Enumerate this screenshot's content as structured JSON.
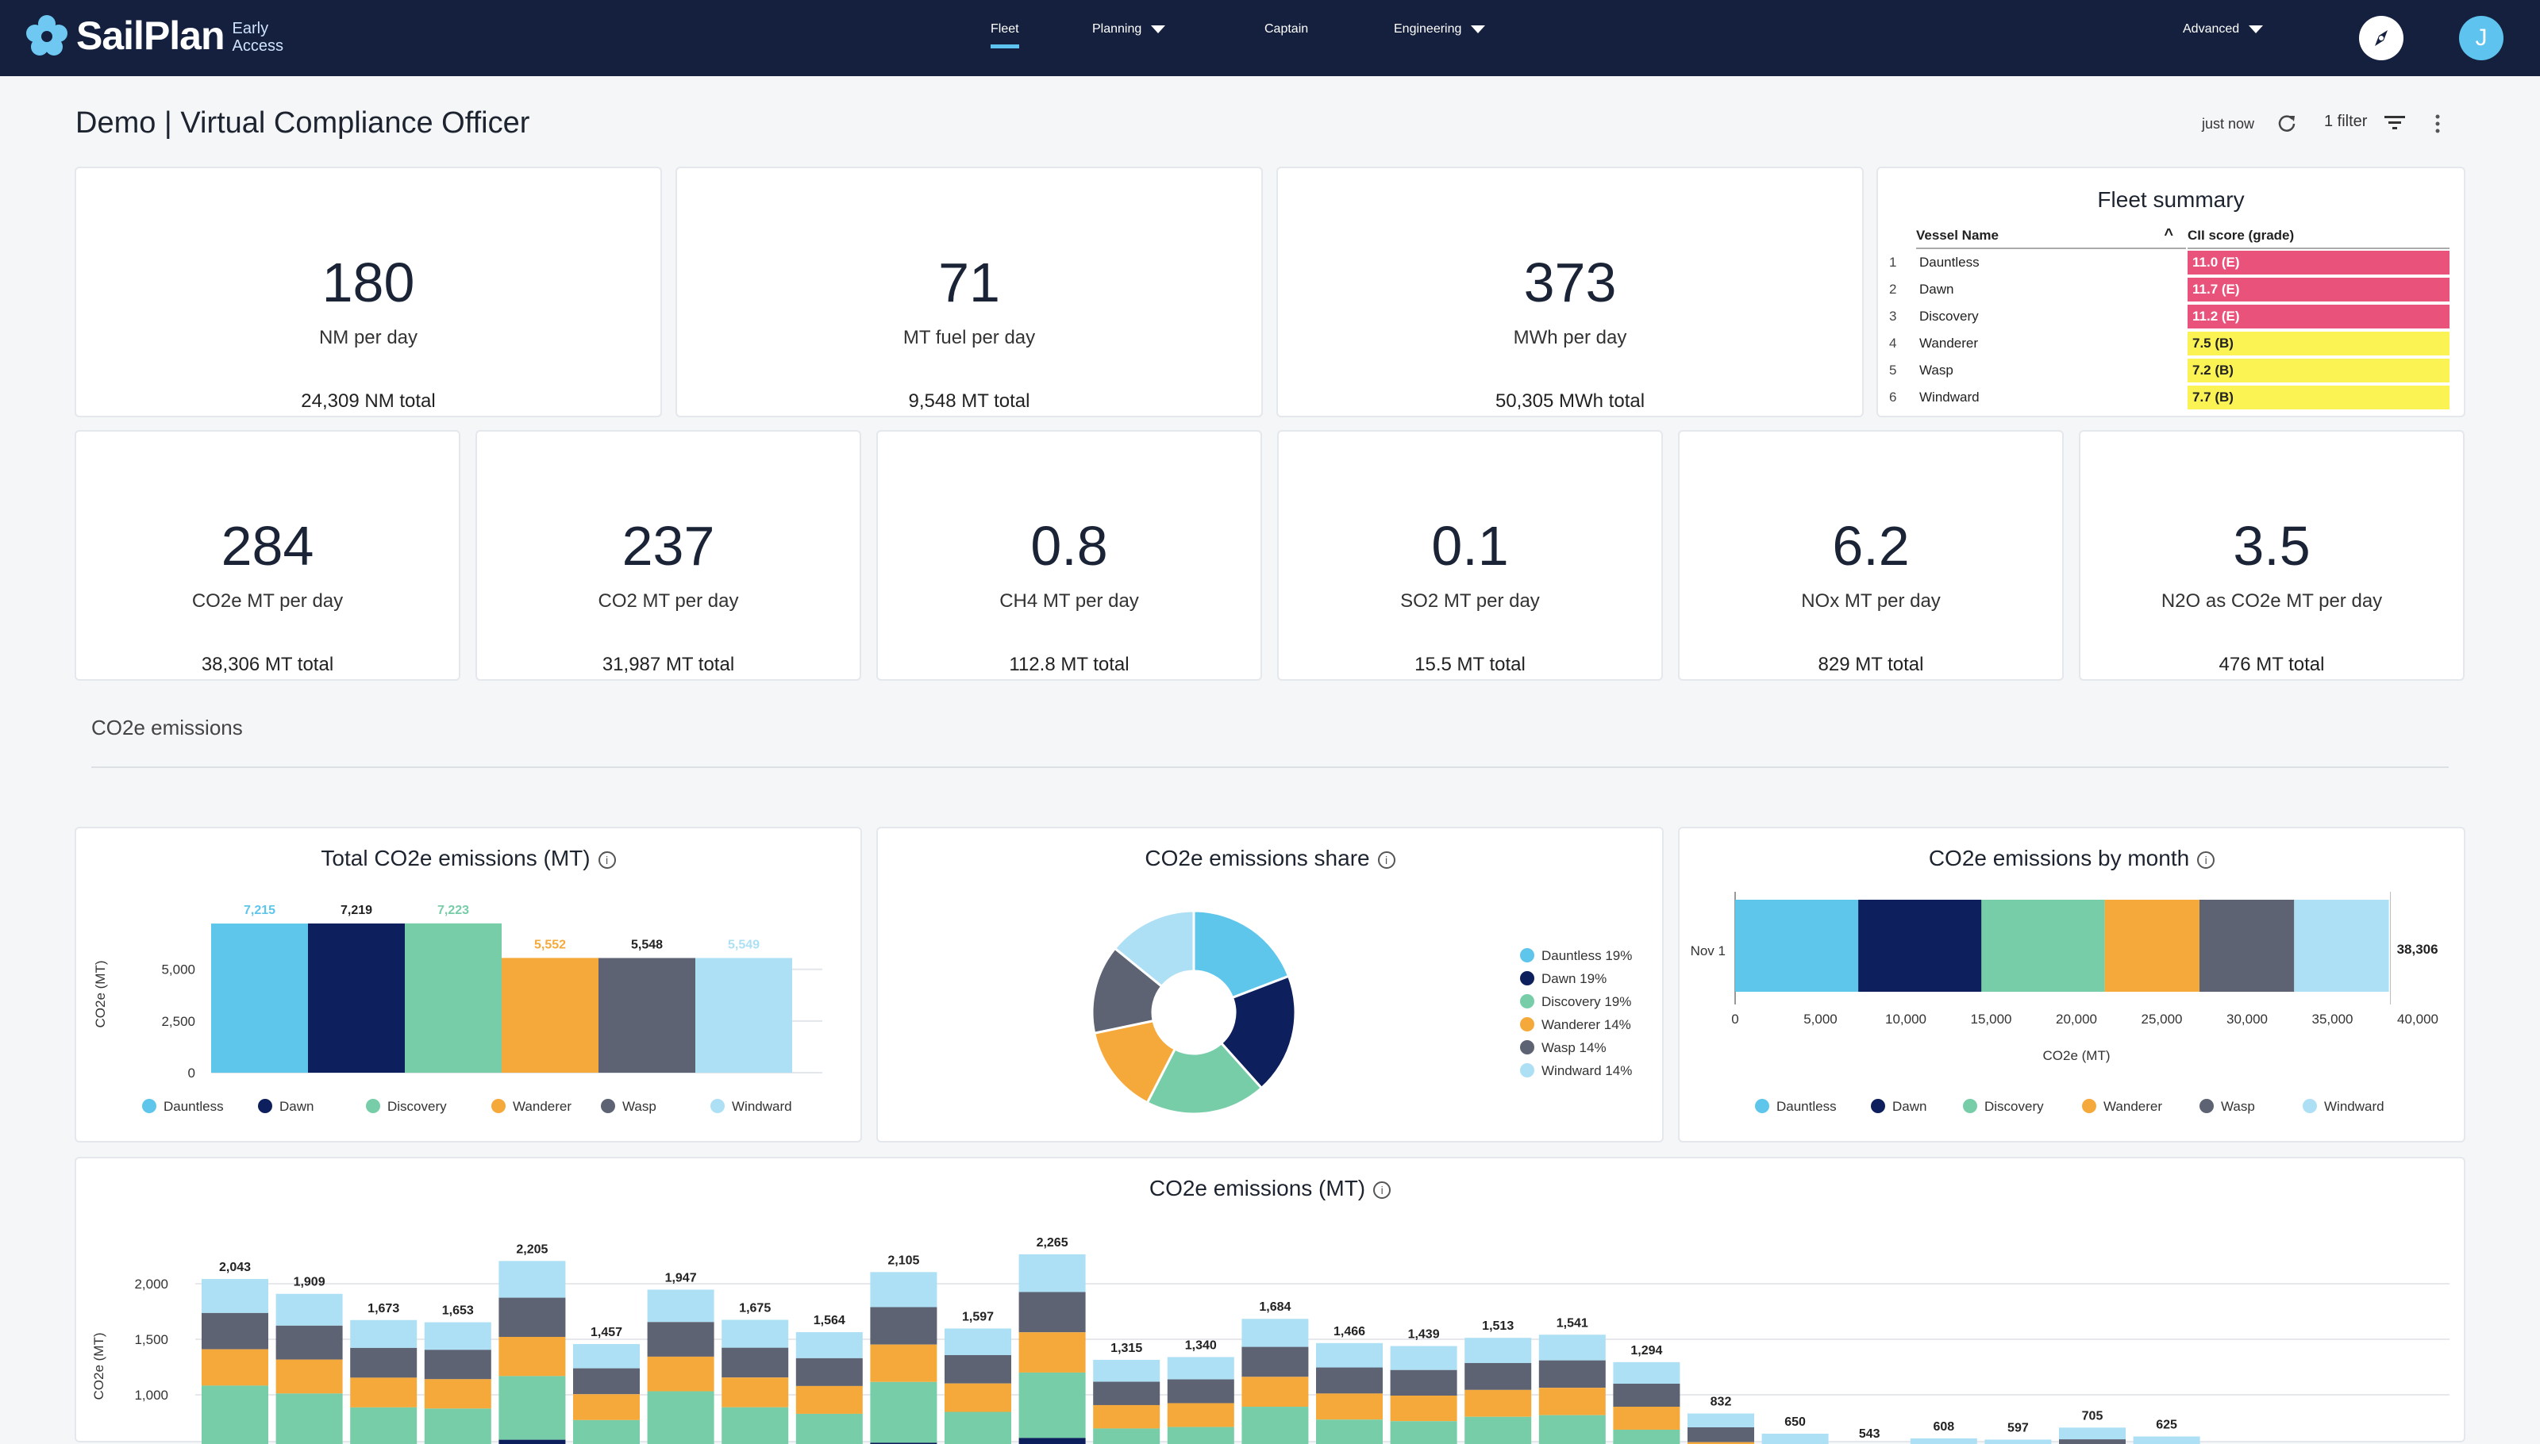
{
  "app": {
    "brand": "SailPlan",
    "badge_line1": "Early",
    "badge_line2": "Access"
  },
  "nav": {
    "fleet": "Fleet",
    "planning": "Planning",
    "captain": "Captain",
    "engineering": "Engineering",
    "advanced": "Advanced",
    "avatar_initial": "J"
  },
  "page": {
    "title": "Demo | Virtual Compliance Officer",
    "updated": "just now",
    "filter": "1 filter"
  },
  "kpis_top": [
    {
      "value": "180",
      "label": "NM per day",
      "total": "24,309 NM total"
    },
    {
      "value": "71",
      "label": "MT fuel per day",
      "total": "9,548 MT total"
    },
    {
      "value": "373",
      "label": "MWh per day",
      "total": "50,305 MWh total"
    }
  ],
  "kpis_bottom": [
    {
      "value": "284",
      "label": "CO2e MT per day",
      "total": "38,306 MT total"
    },
    {
      "value": "237",
      "label": "CO2 MT per day",
      "total": "31,987 MT total"
    },
    {
      "value": "0.8",
      "label": "CH4 MT per day",
      "total": "112.8 MT total"
    },
    {
      "value": "0.1",
      "label": "SO2 MT per day",
      "total": "15.5 MT total"
    },
    {
      "value": "6.2",
      "label": "NOx MT per day",
      "total": "829 MT total"
    },
    {
      "value": "3.5",
      "label": "N2O as CO2e MT per day",
      "total": "476 MT total"
    }
  ],
  "fleet_summary": {
    "title": "Fleet summary",
    "col_name": "Vessel Name",
    "col_score": "CII score (grade)",
    "rows": [
      {
        "idx": "1",
        "name": "Dauntless",
        "score": "11.0 (E)",
        "color": "#e9527a"
      },
      {
        "idx": "2",
        "name": "Dawn",
        "score": "11.7 (E)",
        "color": "#e9527a"
      },
      {
        "idx": "3",
        "name": "Discovery",
        "score": "11.2 (E)",
        "color": "#e9527a"
      },
      {
        "idx": "4",
        "name": "Wanderer",
        "score": "7.5 (B)",
        "color": "#fbf254"
      },
      {
        "idx": "5",
        "name": "Wasp",
        "score": "7.2 (B)",
        "color": "#fbf254"
      },
      {
        "idx": "6",
        "name": "Windward",
        "score": "7.7 (B)",
        "color": "#fbf254"
      }
    ]
  },
  "section": {
    "label": "CO2e emissions"
  },
  "vessels": [
    {
      "name": "Dauntless",
      "color": "#5ec6ea"
    },
    {
      "name": "Dawn",
      "color": "#0d1f5c"
    },
    {
      "name": "Discovery",
      "color": "#76cda8"
    },
    {
      "name": "Wanderer",
      "color": "#f6a93b"
    },
    {
      "name": "Wasp",
      "color": "#5d6373"
    },
    {
      "name": "Windward",
      "color": "#aee0f5"
    }
  ],
  "chart_data": [
    {
      "type": "bar",
      "title": "Total CO2e emissions (MT)",
      "ylabel": "CO2e (MT)",
      "xlabel": "",
      "categories": [
        "Dauntless",
        "Dawn",
        "Discovery",
        "Wanderer",
        "Wasp",
        "Windward"
      ],
      "values": [
        7215,
        7219,
        7223,
        5552,
        5548,
        5549
      ],
      "value_labels": [
        "7,215",
        "7,219",
        "7,223",
        "5,552",
        "5,548",
        "5,549"
      ],
      "yticks": [
        0,
        2500,
        5000
      ],
      "ytick_labels": [
        "0",
        "2,500",
        "5,000"
      ],
      "ylim": [
        0,
        7600
      ]
    },
    {
      "type": "pie",
      "title": "CO2e emissions share",
      "categories": [
        "Dauntless",
        "Dawn",
        "Discovery",
        "Wanderer",
        "Wasp",
        "Windward"
      ],
      "values": [
        19,
        19,
        19,
        14,
        14,
        14
      ],
      "legend_labels": [
        "Dauntless 19%",
        "Dawn 19%",
        "Discovery 19%",
        "Wanderer 14%",
        "Wasp 14%",
        "Windward 14%"
      ]
    },
    {
      "type": "bar",
      "orientation": "horizontal-stacked",
      "title": "CO2e emissions by month",
      "xlabel": "CO2e (MT)",
      "category": "Nov 1",
      "series": [
        {
          "name": "Dauntless",
          "values": [
            7215
          ]
        },
        {
          "name": "Dawn",
          "values": [
            7219
          ]
        },
        {
          "name": "Discovery",
          "values": [
            7223
          ]
        },
        {
          "name": "Wanderer",
          "values": [
            5552
          ]
        },
        {
          "name": "Wasp",
          "values": [
            5548
          ]
        },
        {
          "name": "Windward",
          "values": [
            5549
          ]
        }
      ],
      "total_label": "38,306",
      "xticks": [
        0,
        5000,
        10000,
        15000,
        20000,
        25000,
        30000,
        35000,
        40000
      ],
      "xtick_labels": [
        "0",
        "5,000",
        "10,000",
        "15,000",
        "20,000",
        "25,000",
        "30,000",
        "35,000",
        "40,000"
      ],
      "xlim": [
        0,
        40000
      ]
    },
    {
      "type": "bar",
      "orientation": "vertical-stacked",
      "title": "CO2e emissions (MT)",
      "ylabel": "CO2e (MT)",
      "yticks": [
        1000,
        1500,
        2000
      ],
      "ytick_labels": [
        "1,000",
        "1,500",
        "2,000"
      ],
      "totals": [
        2043,
        1909,
        1673,
        1653,
        2205,
        1457,
        1947,
        1675,
        1564,
        2105,
        1597,
        2265,
        1315,
        1340,
        1684,
        1466,
        1439,
        1513,
        1541,
        1294,
        832,
        650,
        543,
        608,
        597,
        705,
        625
      ],
      "total_labels": [
        "2,043",
        "1,909",
        "1,673",
        "1,653",
        "2,205",
        "1,457",
        "1,947",
        "1,675",
        "1,564",
        "2,105",
        "1,597",
        "2,265",
        "1,315",
        "1,340",
        "1,684",
        "1,466",
        "1,439",
        "1,513",
        "1,541",
        "1,294",
        "832",
        "650",
        "543",
        "608",
        "597",
        "705",
        "625"
      ]
    }
  ]
}
